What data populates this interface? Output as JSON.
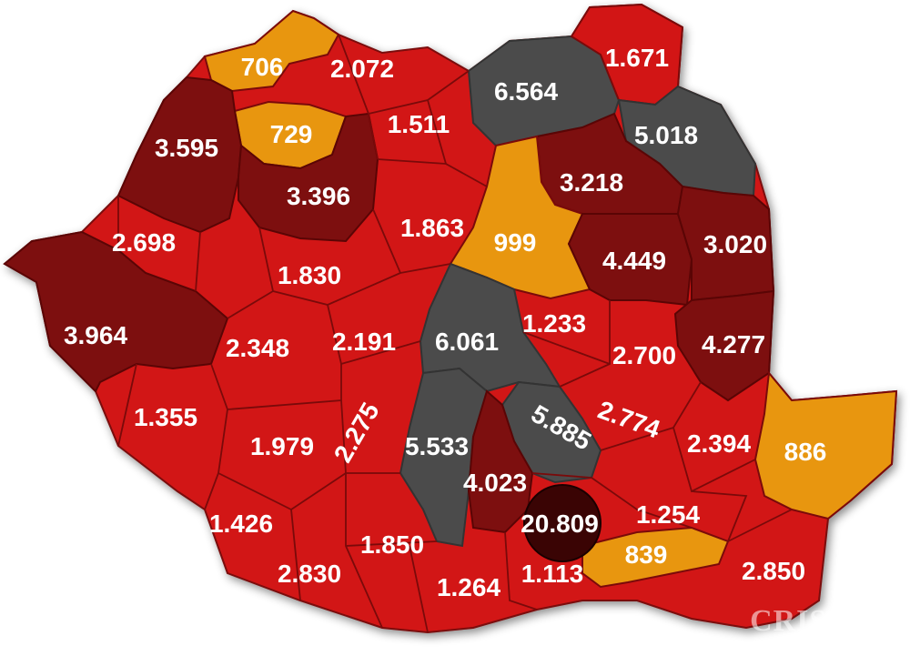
{
  "legend_colors": {
    "orange": "#e8960f",
    "red": "#d21515",
    "dark_red": "#7d0f0f",
    "gray": "#4b4b4b",
    "darkest": "#3a0404"
  },
  "counties": [
    {
      "value": "706",
      "color": "orange"
    },
    {
      "value": "2.072",
      "color": "red"
    },
    {
      "value": "6.564",
      "color": "gray"
    },
    {
      "value": "1.671",
      "color": "red"
    },
    {
      "value": "729",
      "color": "orange"
    },
    {
      "value": "1.511",
      "color": "red"
    },
    {
      "value": "5.018",
      "color": "gray"
    },
    {
      "value": "3.595",
      "color": "dark_red"
    },
    {
      "value": "3.396",
      "color": "dark_red"
    },
    {
      "value": "3.218",
      "color": "dark_red"
    },
    {
      "value": "1.863",
      "color": "red"
    },
    {
      "value": "999",
      "color": "orange"
    },
    {
      "value": "2.698",
      "color": "red"
    },
    {
      "value": "4.449",
      "color": "dark_red"
    },
    {
      "value": "3.020",
      "color": "dark_red"
    },
    {
      "value": "1.830",
      "color": "red"
    },
    {
      "value": "3.964",
      "color": "dark_red"
    },
    {
      "value": "2.348",
      "color": "red"
    },
    {
      "value": "2.191",
      "color": "red"
    },
    {
      "value": "6.061",
      "color": "gray"
    },
    {
      "value": "1.233",
      "color": "red"
    },
    {
      "value": "2.700",
      "color": "red"
    },
    {
      "value": "4.277",
      "color": "dark_red"
    },
    {
      "value": "1.355",
      "color": "red"
    },
    {
      "value": "1.979",
      "color": "red"
    },
    {
      "value": "2.275",
      "color": "red"
    },
    {
      "value": "5.533",
      "color": "gray"
    },
    {
      "value": "5.885",
      "color": "gray"
    },
    {
      "value": "2.774",
      "color": "red"
    },
    {
      "value": "2.394",
      "color": "red"
    },
    {
      "value": "886",
      "color": "orange"
    },
    {
      "value": "4.023",
      "color": "dark_red"
    },
    {
      "value": "20.809",
      "color": "darkest"
    },
    {
      "value": "1.254",
      "color": "red"
    },
    {
      "value": "1.426",
      "color": "red"
    },
    {
      "value": "1.850",
      "color": "red"
    },
    {
      "value": "839",
      "color": "orange"
    },
    {
      "value": "2.830",
      "color": "red"
    },
    {
      "value": "1.264",
      "color": "red"
    },
    {
      "value": "1.113",
      "color": "red"
    },
    {
      "value": "2.850",
      "color": "red"
    }
  ],
  "watermark": "CRIȘANA"
}
